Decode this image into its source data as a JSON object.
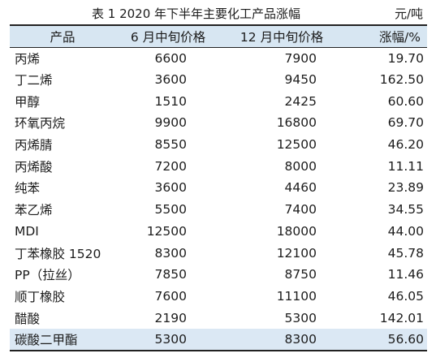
{
  "caption": {
    "title": "表 1   2020 年下半年主要化工产品涨幅",
    "unit": "元/吨"
  },
  "colors": {
    "header_bg": "#d7e6f2",
    "highlight_bg": "#dbe8f4",
    "rule": "#222222"
  },
  "table": {
    "headers": [
      "产品",
      "6 月中旬价格",
      "12 月中旬价格",
      "涨幅/%"
    ],
    "rows": [
      {
        "product": "丙烯",
        "june": "6600",
        "december": "7900",
        "change": "19.70",
        "highlighted": false
      },
      {
        "product": "丁二烯",
        "june": "3600",
        "december": "9450",
        "change": "162.50",
        "highlighted": false
      },
      {
        "product": "甲醇",
        "june": "1510",
        "december": "2425",
        "change": "60.60",
        "highlighted": false
      },
      {
        "product": "环氧丙烷",
        "june": "9900",
        "december": "16800",
        "change": "69.70",
        "highlighted": false
      },
      {
        "product": "丙烯腈",
        "june": "8550",
        "december": "12500",
        "change": "46.20",
        "highlighted": false
      },
      {
        "product": "丙烯酸",
        "june": "7200",
        "december": "8000",
        "change": "11.11",
        "highlighted": false
      },
      {
        "product": "纯苯",
        "june": "3600",
        "december": "4460",
        "change": "23.89",
        "highlighted": false
      },
      {
        "product": "苯乙烯",
        "june": "5500",
        "december": "7400",
        "change": "34.55",
        "highlighted": false
      },
      {
        "product": "MDI",
        "june": "12500",
        "december": "18000",
        "change": "44.00",
        "highlighted": false
      },
      {
        "product": "丁苯橡胶 1520",
        "june": "8300",
        "december": "12100",
        "change": "45.78",
        "highlighted": false
      },
      {
        "product": "PP（拉丝）",
        "june": "7850",
        "december": "8750",
        "change": "11.46",
        "highlighted": false
      },
      {
        "product": "顺丁橡胶",
        "june": "7600",
        "december": "11100",
        "change": "46.05",
        "highlighted": false
      },
      {
        "product": "醋酸",
        "june": "2190",
        "december": "5300",
        "change": "142.01",
        "highlighted": false
      },
      {
        "product": "碳酸二甲酯",
        "june": "5300",
        "december": "8300",
        "change": "56.60",
        "highlighted": true
      }
    ]
  }
}
